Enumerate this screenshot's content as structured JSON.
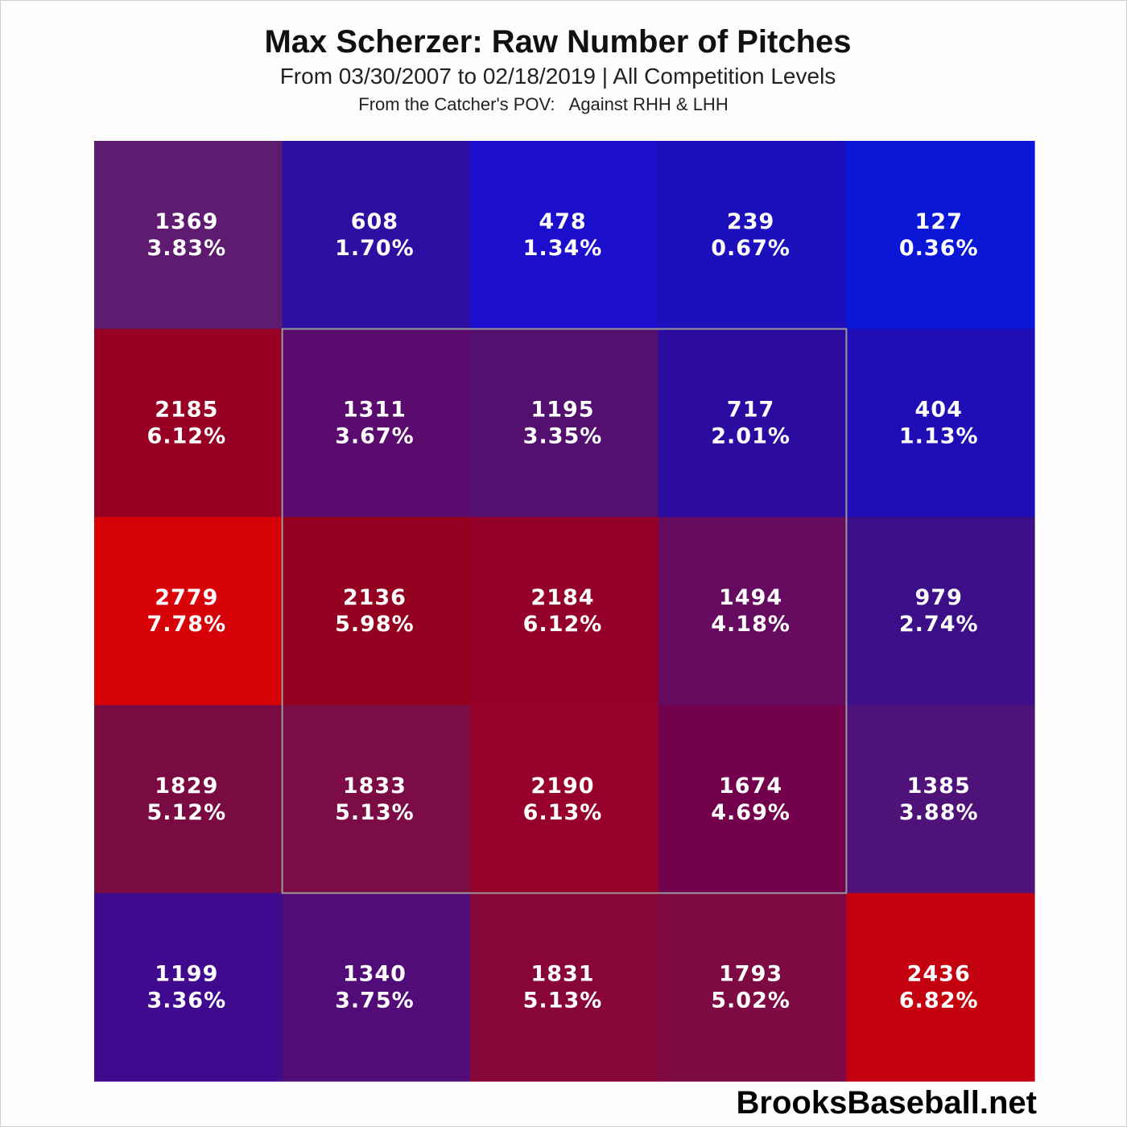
{
  "chart_data": {
    "type": "heatmap",
    "title": "Max Scherzer: Raw Number of Pitches",
    "subtitle": "From 03/30/2007 to 02/18/2019 | All Competition Levels",
    "note": "From the Catcher's POV:   Against RHH & LHH",
    "rows": 5,
    "cols": 5,
    "counts": [
      [
        1369,
        608,
        478,
        239,
        127
      ],
      [
        2185,
        1311,
        1195,
        717,
        404
      ],
      [
        2779,
        2136,
        2184,
        1494,
        979
      ],
      [
        1829,
        1833,
        2190,
        1674,
        1385
      ],
      [
        1199,
        1340,
        1831,
        1793,
        2436
      ]
    ],
    "percents": [
      [
        "3.83%",
        "1.70%",
        "1.34%",
        "0.67%",
        "0.36%"
      ],
      [
        "6.12%",
        "3.67%",
        "3.35%",
        "2.01%",
        "1.13%"
      ],
      [
        "7.78%",
        "5.98%",
        "6.12%",
        "4.18%",
        "2.74%"
      ],
      [
        "5.12%",
        "5.13%",
        "6.13%",
        "4.69%",
        "3.88%"
      ],
      [
        "3.36%",
        "3.75%",
        "5.13%",
        "5.02%",
        "6.82%"
      ]
    ],
    "colors": [
      [
        "#5e1b70",
        "#2d0fa2",
        "#1b0ecd",
        "#1c10bc",
        "#0b17d6"
      ],
      [
        "#970024",
        "#590c6e",
        "#53106f",
        "#2c0ca0",
        "#1f0db5"
      ],
      [
        "#d70208",
        "#940020",
        "#95002a",
        "#660b5f",
        "#3c0f89"
      ],
      [
        "#7a0b42",
        "#7c0c46",
        "#97002a",
        "#72004c",
        "#4f1278"
      ],
      [
        "#400a8f",
        "#520c78",
        "#870637",
        "#7e0a43",
        "#c4020f"
      ]
    ],
    "strike_zone": {
      "row_start": 1,
      "row_end": 3,
      "col_start": 1,
      "col_end": 3
    },
    "color_scale": {
      "low": "#0000ff",
      "high": "#ff0000"
    }
  },
  "watermark": "BrooksBaseball.net"
}
